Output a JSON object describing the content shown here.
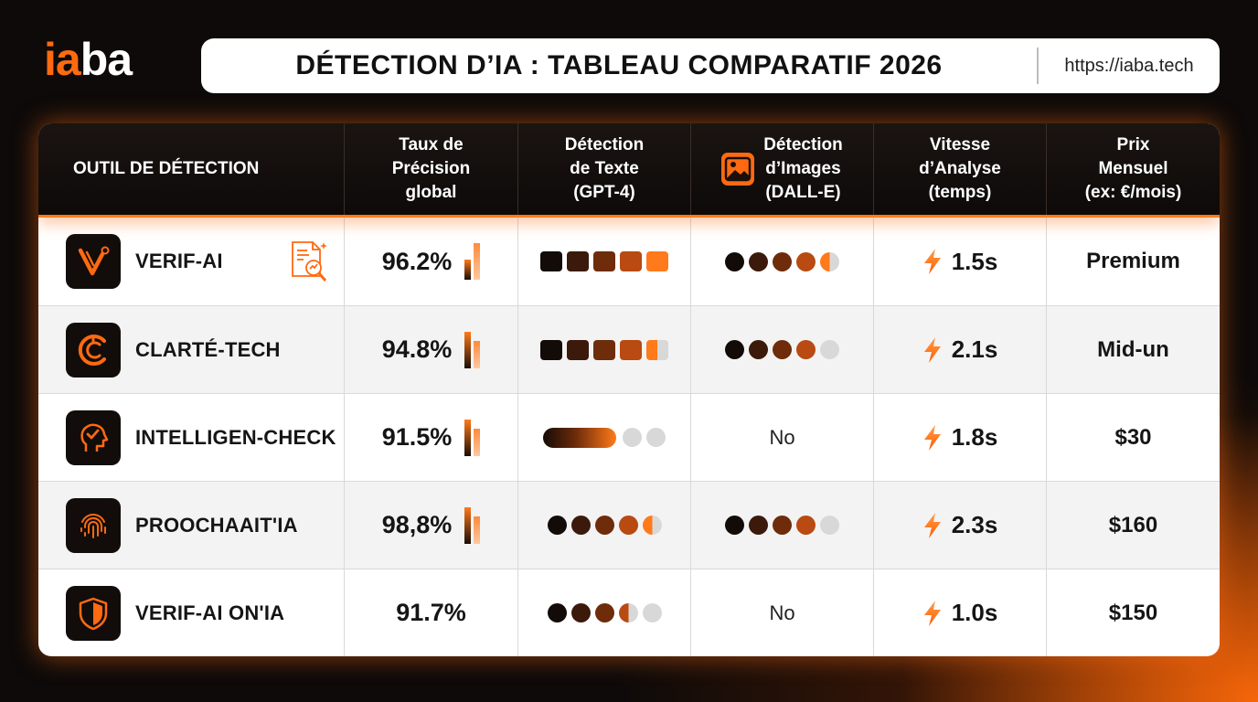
{
  "brand": {
    "logo_part1": "ia",
    "logo_part2": "ba"
  },
  "header": {
    "title": "DÉTECTION D’IA : TABLEAU COMPARATIF 2026",
    "url": "https://iaba.tech"
  },
  "colors": {
    "accent": "#ff6a10",
    "dark": "#120d0b",
    "levels": [
      "#120b08",
      "#3b1a0b",
      "#6e2c0a",
      "#b84a12",
      "#ff7a1a"
    ],
    "empty": "#d8d8d8"
  },
  "table": {
    "columns": [
      "OUTIL DE DÉTECTION",
      "Taux de\nPrécision\nglobal",
      "Détection\nde Texte\n(GPT-4)",
      "Détection\nd’Images\n(DALL-E)",
      "Vitesse\nd’Analyse\n(temps)",
      "Prix\nMensuel\n(ex: €/mois)"
    ],
    "column_icons": [
      "",
      "",
      "",
      "image-icon",
      "",
      ""
    ],
    "rows": [
      {
        "name": "VERIF-AI",
        "icon": "v-logo-icon",
        "extra_icon": "document-magnifier-icon",
        "accuracy": "96.2%",
        "accuracy_bars": [
          0.55,
          1.0
        ],
        "text_style": "squares",
        "text_rating": 5.0,
        "image_rating": 4.5,
        "image": "",
        "speed": "1.5s",
        "price": "Premium"
      },
      {
        "name": "CLARTÉ-TECH",
        "icon": "c-logo-icon",
        "extra_icon": "",
        "accuracy": "94.8%",
        "accuracy_bars": [
          1.0,
          0.75
        ],
        "text_style": "squares",
        "text_rating": 4.5,
        "image_rating": 4.0,
        "image": "",
        "speed": "2.1s",
        "price": "Mid-un"
      },
      {
        "name": "INTELLIGEN-CHECK",
        "icon": "head-check-icon",
        "extra_icon": "",
        "accuracy": "91.5%",
        "accuracy_bars": [
          1.0,
          0.75
        ],
        "text_style": "pill",
        "text_rating": 3.0,
        "image_rating": 0,
        "image": "No",
        "speed": "1.8s",
        "price": "$30"
      },
      {
        "name": "PROOCHAAIT'IA",
        "icon": "fingerprint-icon",
        "extra_icon": "",
        "accuracy": "98,8%",
        "accuracy_bars": [
          1.0,
          0.75
        ],
        "text_style": "dots",
        "text_rating": 4.5,
        "image_rating": 4.0,
        "image": "",
        "speed": "2.3s",
        "price": "$160"
      },
      {
        "name": "VERIF-AI ON'IA",
        "icon": "shield-icon",
        "extra_icon": "",
        "accuracy": "91.7%",
        "accuracy_bars": [],
        "text_style": "dots",
        "text_rating": 3.5,
        "image_rating": 0,
        "image": "No",
        "speed": "1.0s",
        "price": "$150"
      }
    ]
  }
}
